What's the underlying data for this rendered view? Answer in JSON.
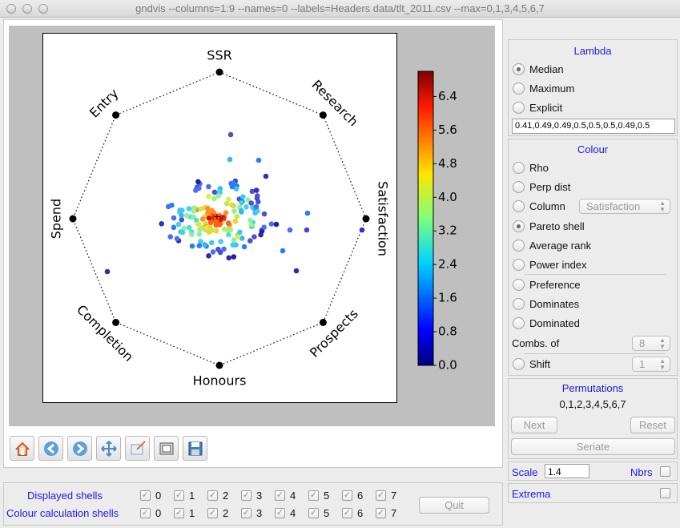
{
  "window": {
    "title": "gndvis --columns=1:9 --names=0 --labels=Headers data/tlt_2011.csv --max=0,1,3,4,5,6,7"
  },
  "plot": {
    "axes": [
      "SSR",
      "Research",
      "Satisfaction",
      "Prospects",
      "Honours",
      "Completion",
      "Spend",
      "Entry"
    ],
    "colorbar": {
      "ticks": [
        "6.4",
        "5.6",
        "4.8",
        "4.0",
        "3.2",
        "2.4",
        "1.6",
        "0.8",
        "0.0"
      ],
      "min": 0.0,
      "max": 7.0
    },
    "points": [
      [
        2.4,
        "#5050c8"
      ],
      [
        0.5,
        "#2b2bb0"
      ],
      [
        1.4,
        "#4a6ef0"
      ],
      [
        3.0,
        "#34b8f0"
      ],
      [
        2.8,
        "#3cc8f0"
      ],
      [
        3.2,
        "#50e0d0"
      ],
      [
        4.4,
        "#b8f050"
      ],
      [
        6.0,
        "#e83010"
      ],
      [
        5.2,
        "#ff9020"
      ],
      [
        4.8,
        "#f4d030"
      ],
      [
        3.6,
        "#90f0a0"
      ],
      [
        0.8,
        "#2020a0"
      ],
      [
        1.2,
        "#3848e0"
      ],
      [
        2.0,
        "#2880f0"
      ],
      [
        5.6,
        "#ff6010"
      ],
      [
        6.4,
        "#c81010"
      ],
      [
        4.2,
        "#d8f040"
      ],
      [
        3.8,
        "#a0f080"
      ],
      [
        2.6,
        "#40d0f0"
      ],
      [
        1.0,
        "#3030c0"
      ]
    ]
  },
  "toolbar": [
    "home-icon",
    "back-arrow-icon",
    "forward-arrow-icon",
    "pan-icon",
    "zoom-icon",
    "subplots-icon",
    "save-icon"
  ],
  "shells": {
    "displayed_label": "Displayed shells",
    "colour_label": "Colour calculation shells",
    "numbers": [
      "0",
      "1",
      "2",
      "3",
      "4",
      "5",
      "6",
      "7"
    ],
    "quit_label": "Quit"
  },
  "lambda": {
    "title": "Lambda",
    "options": [
      "Median",
      "Maximum",
      "Explicit"
    ],
    "selected": "Median",
    "explicit_value": "0.41,0.49,0.49,0.5,0.5,0.5,0.49,0.5"
  },
  "colour": {
    "title": "Colour",
    "options": [
      "Rho",
      "Perp dist",
      "Column",
      "Pareto shell",
      "Average rank",
      "Power index"
    ],
    "column_select": "Satisfaction",
    "selected": "Pareto shell",
    "options2": [
      "Preference",
      "Dominates",
      "Dominated"
    ],
    "combs_label": "Combs. of",
    "combs_value": "8",
    "shift_label": "Shift",
    "shift_value": "1"
  },
  "permutations": {
    "title": "Permutations",
    "value": "0,1,2,3,4,5,6,7",
    "next_label": "Next",
    "reset_label": "Reset",
    "seriate_label": "Seriate"
  },
  "scale": {
    "label": "Scale",
    "value": "1.4",
    "nbrs_label": "Nbrs"
  },
  "extrema": {
    "label": "Extrema"
  }
}
